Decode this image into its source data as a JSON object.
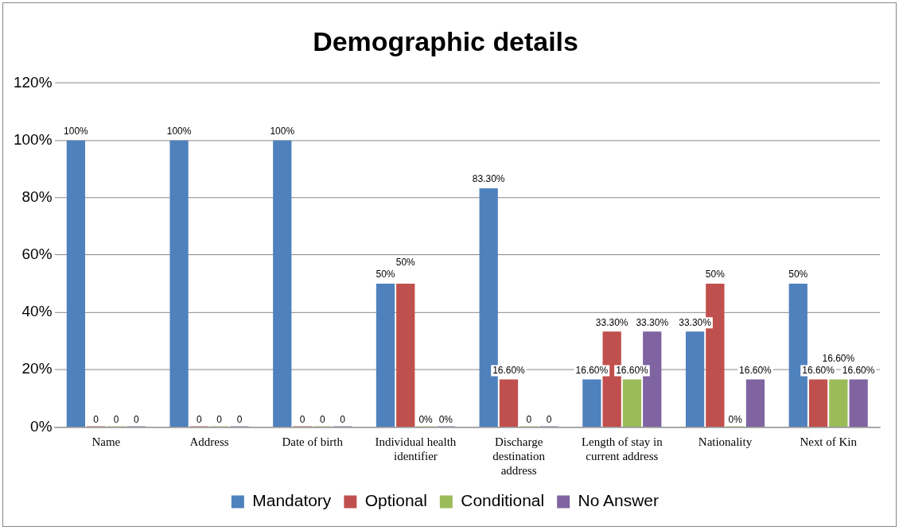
{
  "chart_data": {
    "type": "bar",
    "title": "Demographic details",
    "categories": [
      "Name",
      "Address",
      "Date of birth",
      "Individual health identifier",
      "Discharge destination address",
      "Length of stay in current address",
      "Nationality",
      "Next of Kin"
    ],
    "series": [
      {
        "name": "Mandatory",
        "color": "#4f81bd",
        "values": [
          100,
          100,
          100,
          50,
          83.3,
          16.6,
          33.3,
          50
        ],
        "value_labels": [
          "100%",
          "100%",
          "100%",
          "50%",
          "83.30%",
          "16.60%",
          "33.30%",
          "50%"
        ]
      },
      {
        "name": "Optional",
        "color": "#c0504d",
        "values": [
          0,
          0,
          0,
          50,
          16.6,
          33.3,
          50,
          16.6
        ],
        "value_labels": [
          "0",
          "0",
          "0",
          "50%",
          "16.60%",
          "33.30%",
          "50%",
          "16.60%"
        ]
      },
      {
        "name": "Conditional",
        "color": "#9bbb59",
        "values": [
          0,
          0,
          0,
          0,
          0,
          16.6,
          0,
          16.6
        ],
        "value_labels": [
          "0",
          "0",
          "0",
          "0%",
          "0",
          "16.60%",
          "0%",
          "16.60%"
        ]
      },
      {
        "name": "No Answer",
        "color": "#8064a2",
        "values": [
          0,
          0,
          0,
          0,
          0,
          33.3,
          16.6,
          16.6
        ],
        "value_labels": [
          "0",
          "0",
          "0",
          "0%",
          "0",
          "33.30%",
          "16.60%",
          "16.60%"
        ]
      }
    ],
    "ylim": [
      0,
      120
    ],
    "yticks": [
      {
        "value": 0,
        "label": "0%"
      },
      {
        "value": 20,
        "label": "20%"
      },
      {
        "value": 40,
        "label": "40%"
      },
      {
        "value": 60,
        "label": "60%"
      },
      {
        "value": 80,
        "label": "80%"
      },
      {
        "value": 100,
        "label": "100%"
      },
      {
        "value": 120,
        "label": "120%"
      }
    ],
    "grid": "y",
    "legend": "bottom"
  }
}
